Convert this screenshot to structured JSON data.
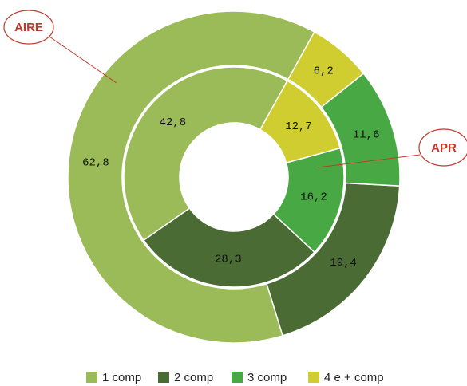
{
  "chart_data": {
    "type": "donut",
    "categories": [
      "1 comp",
      "2 comp",
      "3 comp",
      "4 e + comp"
    ],
    "colors": [
      "#9bbb59",
      "#4b6b35",
      "#48a944",
      "#cfcd2f"
    ],
    "series": [
      {
        "name": "AIRE",
        "values": [
          62.8,
          19.4,
          11.6,
          6.2
        ],
        "value_labels": [
          "62,8",
          "19,4",
          "11,6",
          "6,2"
        ]
      },
      {
        "name": "APR",
        "values": [
          42.8,
          28.3,
          16.2,
          12.7
        ],
        "value_labels": [
          "42,8",
          "28,3",
          "16,2",
          "12,7"
        ]
      }
    ]
  }
}
